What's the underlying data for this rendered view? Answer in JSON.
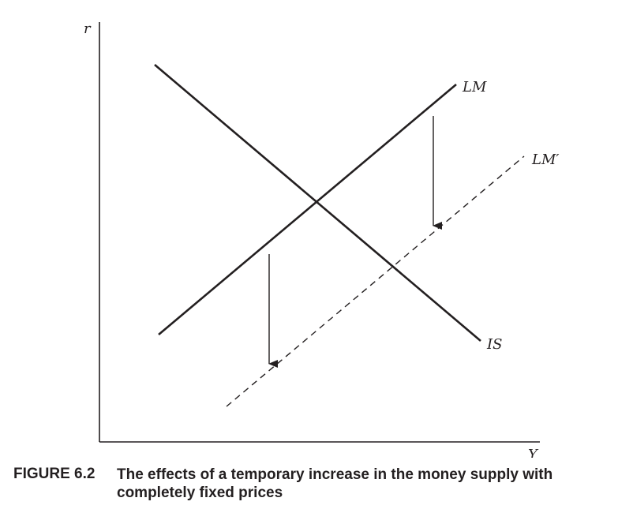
{
  "diagram": {
    "x_axis_label": "Y",
    "y_axis_label": "r",
    "curves": {
      "lm": "LM",
      "lm_prime": "LM′",
      "is": "IS"
    }
  },
  "caption": {
    "figure_number": "FIGURE 6.2",
    "text": "The effects of a temporary increase in the money supply with completely fixed prices"
  },
  "colors": {
    "ink": "#231f20"
  }
}
